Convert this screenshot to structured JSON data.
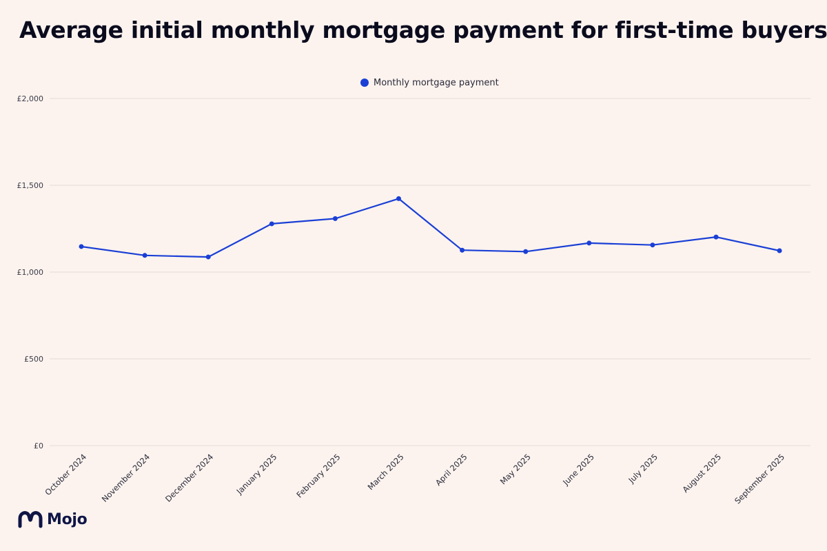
{
  "brand": {
    "name": "Mojo",
    "primary_color": "#0f1546"
  },
  "chart_data": {
    "type": "line",
    "title": "Average initial monthly mortgage payment for first-time buyers",
    "xlabel": "",
    "ylabel": "",
    "ylim": [
      0,
      2000
    ],
    "yticks": [
      0,
      500,
      1000,
      1500,
      2000
    ],
    "ytick_labels": [
      "£0",
      "£500",
      "£1,000",
      "£1,500",
      "£2,000"
    ],
    "grid": true,
    "legend_position": "top-center",
    "categories": [
      "October 2024",
      "November 2024",
      "December 2024",
      "January 2025",
      "February 2025",
      "March 2025",
      "April 2025",
      "May 2025",
      "June 2025",
      "July 2025",
      "August 2025",
      "September 2025"
    ],
    "series": [
      {
        "name": "Monthly mortgage payment",
        "color": "#1a3fd6",
        "values": [
          1147,
          1096,
          1087,
          1278,
          1308,
          1423,
          1126,
          1118,
          1167,
          1156,
          1202,
          1123
        ]
      }
    ]
  }
}
